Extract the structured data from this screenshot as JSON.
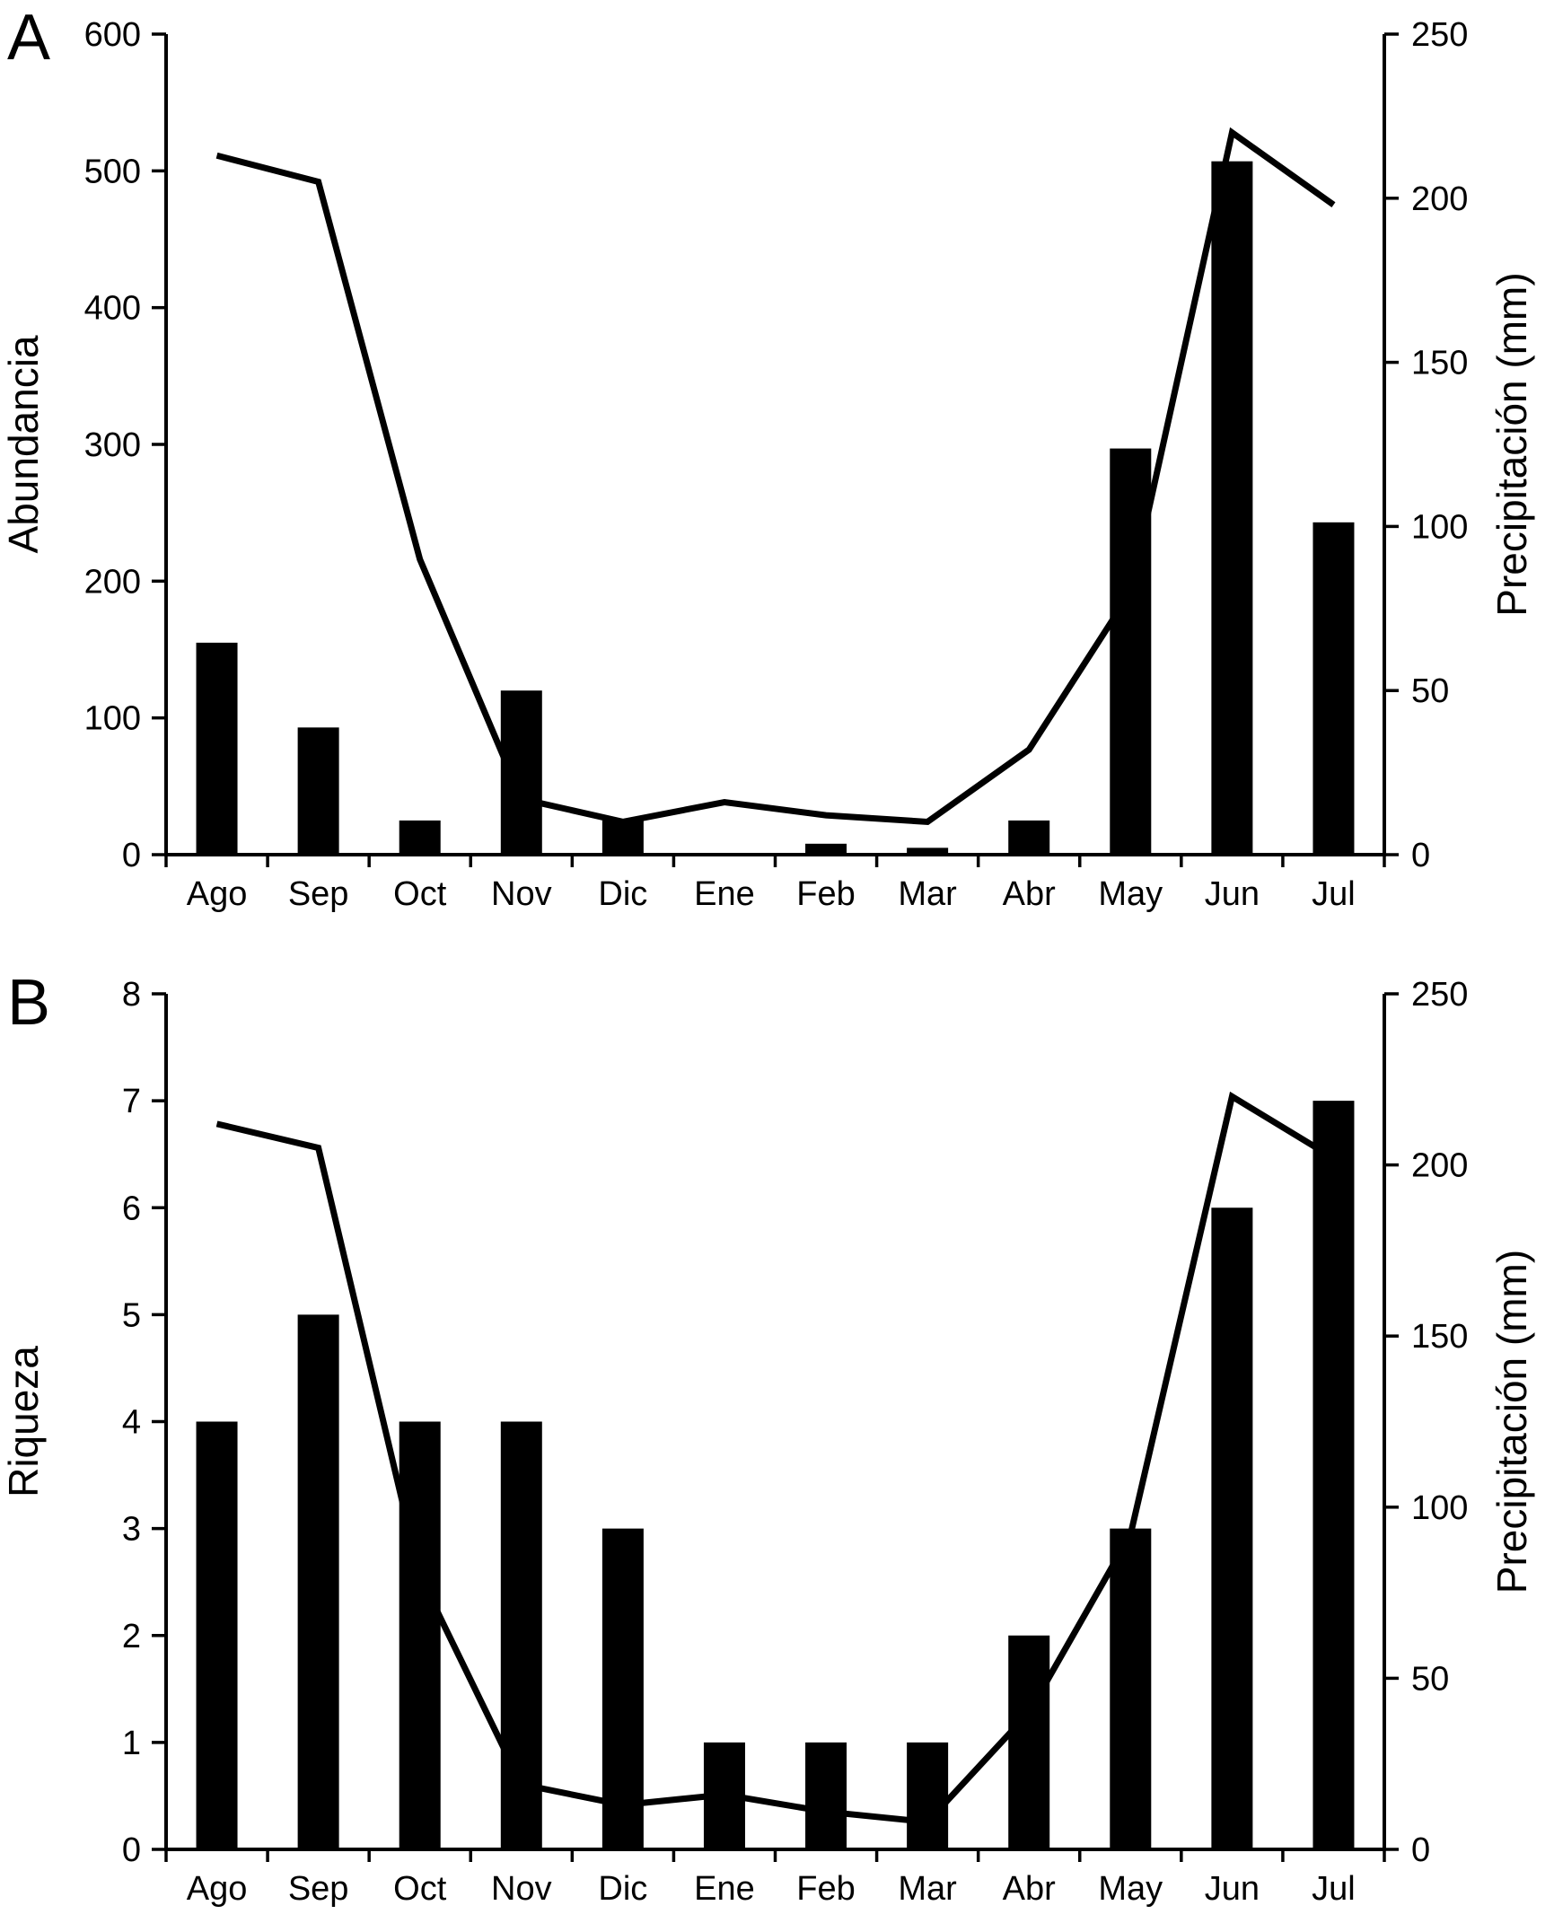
{
  "chart_data": [
    {
      "type": "bar+line",
      "panel_label": "A",
      "categories": [
        "Ago",
        "Sep",
        "Oct",
        "Nov",
        "Dic",
        "Ene",
        "Feb",
        "Mar",
        "Abr",
        "May",
        "Jun",
        "Jul"
      ],
      "series": [
        {
          "name": "Abundancia",
          "type": "bar",
          "axis": "left",
          "values": [
            155,
            93,
            25,
            120,
            25,
            0,
            8,
            5,
            25,
            297,
            507,
            243
          ]
        },
        {
          "name": "Precipitación (mm)",
          "type": "line",
          "axis": "right",
          "values": [
            213,
            205,
            90,
            17,
            10,
            16,
            12,
            10,
            32,
            80,
            220,
            198
          ]
        }
      ],
      "left_axis": {
        "label": "Abundancia",
        "min": 0,
        "max": 600,
        "ticks": [
          0,
          100,
          200,
          300,
          400,
          500,
          600
        ]
      },
      "right_axis": {
        "label": "Precipitación (mm)",
        "min": 0,
        "max": 250,
        "ticks": [
          0,
          50,
          100,
          150,
          200,
          250
        ]
      },
      "legend": "none",
      "grid": false,
      "colors": {
        "bar": "#000000",
        "line": "#000000",
        "axis": "#000000",
        "text": "#000000",
        "background": "#ffffff"
      }
    },
    {
      "type": "bar+line",
      "panel_label": "B",
      "categories": [
        "Ago",
        "Sep",
        "Oct",
        "Nov",
        "Dic",
        "Ene",
        "Feb",
        "Mar",
        "Abr",
        "May",
        "Jun",
        "Jul"
      ],
      "series": [
        {
          "name": "Riqueza",
          "type": "bar",
          "axis": "left",
          "values": [
            4,
            5,
            4,
            4,
            3,
            1,
            1,
            1,
            2,
            3,
            6,
            7
          ]
        },
        {
          "name": "Precipitación (mm)",
          "type": "line",
          "axis": "right",
          "values": [
            212,
            205,
            80,
            19,
            13,
            16,
            11,
            8,
            40,
            92,
            220,
            202
          ]
        }
      ],
      "left_axis": {
        "label": "Riqueza",
        "min": 0,
        "max": 8,
        "ticks": [
          0,
          1,
          2,
          3,
          4,
          5,
          6,
          7,
          8
        ]
      },
      "right_axis": {
        "label": "Precipitación (mm)",
        "min": 0,
        "max": 250,
        "ticks": [
          0,
          50,
          100,
          150,
          200,
          250
        ]
      },
      "legend": "none",
      "grid": false,
      "colors": {
        "bar": "#000000",
        "line": "#000000",
        "axis": "#000000",
        "text": "#000000",
        "background": "#ffffff"
      }
    }
  ]
}
